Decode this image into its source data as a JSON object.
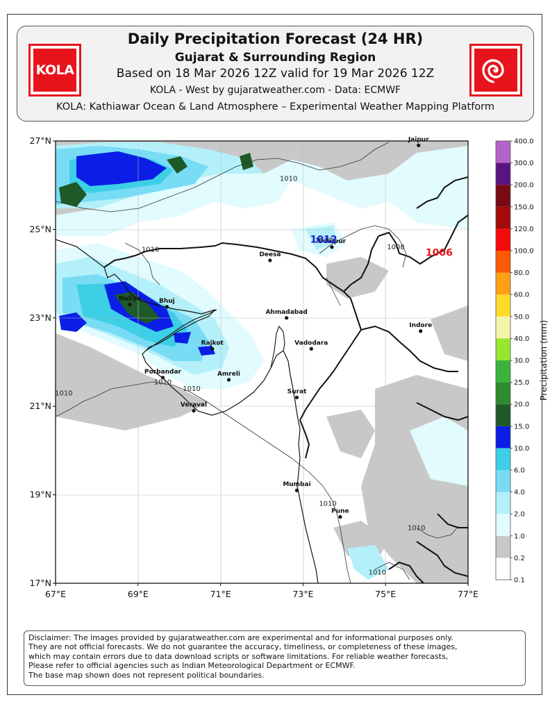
{
  "header": {
    "title": "Daily Precipitation Forecast (24 HR)",
    "subtitle": "Gujarat & Surrounding Region",
    "based_on": "Based on 18 Mar 2026 12Z valid for 19 Mar 2026 12Z",
    "credit": "KOLA - West by gujaratweather.com  -  Data: ECMWF",
    "platform": "KOLA: Kathiawar Ocean & Land Atmosphere – Experimental Weather Mapping Platform",
    "logo_left_text": "KOLA",
    "logo_right_icon": "cyclone-icon",
    "brand_color": "#e8141b"
  },
  "map": {
    "lat_labels": [
      "27°N",
      "25°N",
      "23°N",
      "21°N",
      "19°N",
      "17°N"
    ],
    "lon_labels": [
      "67°E",
      "69°E",
      "71°E",
      "73°E",
      "75°E",
      "77°E"
    ],
    "extent": {
      "lon_min": 67,
      "lon_max": 77,
      "lat_min": 17,
      "lat_max": 27
    },
    "cities": [
      {
        "name": "Jaipur",
        "lon": 75.8,
        "lat": 26.9
      },
      {
        "name": "Udaipur",
        "lon": 73.7,
        "lat": 24.6
      },
      {
        "name": "Deesa",
        "lon": 72.2,
        "lat": 24.3
      },
      {
        "name": "Naliya",
        "lon": 68.8,
        "lat": 23.3
      },
      {
        "name": "Bhuj",
        "lon": 69.7,
        "lat": 23.25
      },
      {
        "name": "Ahmadabad",
        "lon": 72.6,
        "lat": 23.0
      },
      {
        "name": "Indore",
        "lon": 75.85,
        "lat": 22.7
      },
      {
        "name": "Rajkot",
        "lon": 70.8,
        "lat": 22.3
      },
      {
        "name": "Vadodara",
        "lon": 73.2,
        "lat": 22.3
      },
      {
        "name": "Porbandar",
        "lon": 69.6,
        "lat": 21.65
      },
      {
        "name": "Amreli",
        "lon": 71.2,
        "lat": 21.6
      },
      {
        "name": "Surat",
        "lon": 72.85,
        "lat": 21.2
      },
      {
        "name": "Veraval",
        "lon": 70.35,
        "lat": 20.9
      },
      {
        "name": "Mumbai",
        "lon": 72.85,
        "lat": 19.1
      },
      {
        "name": "Pune",
        "lon": 73.9,
        "lat": 18.5
      }
    ],
    "isobar_labels": [
      {
        "text": "1010",
        "lon": 72.65,
        "lat": 26.1
      },
      {
        "text": "1010",
        "lon": 69.3,
        "lat": 24.5
      },
      {
        "text": "1012",
        "lon": 73.5,
        "lat": 24.7
      },
      {
        "text": "1008",
        "lon": 75.25,
        "lat": 24.55
      },
      {
        "text": "1010",
        "lon": 69.6,
        "lat": 21.5
      },
      {
        "text": "1010",
        "lon": 70.3,
        "lat": 21.35
      },
      {
        "text": "1010",
        "lon": 67.2,
        "lat": 21.25
      },
      {
        "text": "1010",
        "lon": 73.6,
        "lat": 18.75
      },
      {
        "text": "1010",
        "lon": 75.75,
        "lat": 18.2
      },
      {
        "text": "1010",
        "lon": 74.8,
        "lat": 17.2
      }
    ],
    "pressure_centers": [
      {
        "text": "1006",
        "lon": 76.3,
        "lat": 24.4,
        "color": "#e8141b"
      },
      {
        "text": "1012",
        "lon": 73.5,
        "lat": 24.7,
        "color": "#1a1ae0"
      }
    ]
  },
  "colorbar": {
    "label": "Precipitation (mm)",
    "levels": [
      "0.1",
      "0.2",
      "1.0",
      "2.0",
      "4.0",
      "6.0",
      "10.0",
      "15.0",
      "20.0",
      "25.0",
      "30.0",
      "40.0",
      "50.0",
      "60.0",
      "80.0",
      "100.0",
      "120.0",
      "150.0",
      "200.0",
      "300.0",
      "400.0"
    ],
    "colors": [
      "#ffffff",
      "#c8c8c8",
      "#e1fbfe",
      "#b4f0fa",
      "#78dcf5",
      "#3ccfe6",
      "#0a1ee6",
      "#1e5a28",
      "#2e8b2e",
      "#3cb43c",
      "#96e632",
      "#f5f5aa",
      "#ffdc28",
      "#ffa014",
      "#ff5a00",
      "#f50a0a",
      "#a50a0a",
      "#780a14",
      "#5a1482",
      "#b464c8",
      "#dcb4f0"
    ]
  },
  "disclaimer": [
    "Disclaimer: The images provided by gujaratweather.com are experimental and for informational purposes only.",
    "They are not official forecasts. We do not guarantee the accuracy, timeliness, or completeness of these images,",
    "which may contain errors due to data download scripts or software limitations. For reliable weather forecasts,",
    "Please refer to official agencies such as Indian Meteorological Department or ECMWF.",
    "The base map shown does not represent political boundaries."
  ]
}
